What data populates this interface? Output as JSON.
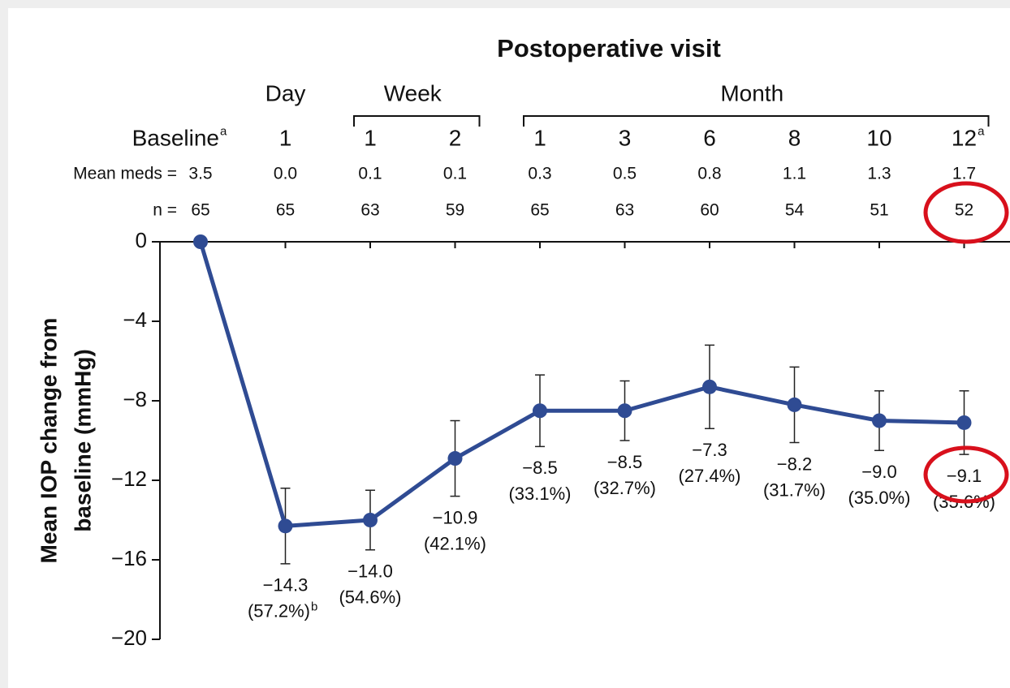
{
  "chart_data": {
    "type": "line",
    "title": "Postoperative visit",
    "y_label": [
      "Mean IOP change from",
      "baseline (mmHg)"
    ],
    "groups": [
      {
        "label": "Day",
        "start": 1,
        "end": 1,
        "bracket": false
      },
      {
        "label": "Week",
        "start": 2,
        "end": 3,
        "bracket": true
      },
      {
        "label": "Month",
        "start": 4,
        "end": 9,
        "bracket": true
      }
    ],
    "categories": [
      "Baseline",
      "1",
      "1",
      "2",
      "1",
      "3",
      "6",
      "8",
      "10",
      "12"
    ],
    "footnotes": [
      {
        "target": "categories",
        "index": 0,
        "mark": "a"
      },
      {
        "target": "categories",
        "index": 9,
        "mark": "a"
      },
      {
        "target": "percent_labels",
        "index": 1,
        "mark": "b"
      }
    ],
    "meds_label": "Mean meds =",
    "meds": [
      "3.5",
      "0.0",
      "0.1",
      "0.1",
      "0.3",
      "0.5",
      "0.8",
      "1.1",
      "1.3",
      "1.7"
    ],
    "n_label": "n =",
    "n": [
      65,
      65,
      63,
      59,
      65,
      63,
      60,
      54,
      51,
      52
    ],
    "values": [
      0,
      -14.3,
      -14.0,
      -10.9,
      -8.5,
      -8.5,
      -7.3,
      -8.2,
      -9.0,
      -9.1
    ],
    "value_labels": [
      null,
      "−14.3",
      "−14.0",
      "−10.9",
      "−8.5",
      "−8.5",
      "−7.3",
      "−8.2",
      "−9.0",
      "−9.1"
    ],
    "percent_labels": [
      null,
      "(57.2%)",
      "(54.6%)",
      "(42.1%)",
      "(33.1%)",
      "(32.7%)",
      "(27.4%)",
      "(31.7%)",
      "(35.0%)",
      "(35.6%)"
    ],
    "errors": [
      null,
      1.9,
      1.5,
      1.9,
      1.8,
      1.5,
      2.1,
      1.9,
      1.5,
      1.6
    ],
    "color": "#2f4b93",
    "ylim": [
      -20,
      0
    ],
    "yticks": [
      0,
      {
        "value": -4,
        "label": "−4"
      },
      {
        "value": -8,
        "label": "−8"
      },
      {
        "value": -12,
        "label": "−12"
      },
      {
        "value": -16,
        "label": "−16"
      },
      {
        "value": -20,
        "label": "−20"
      }
    ]
  }
}
